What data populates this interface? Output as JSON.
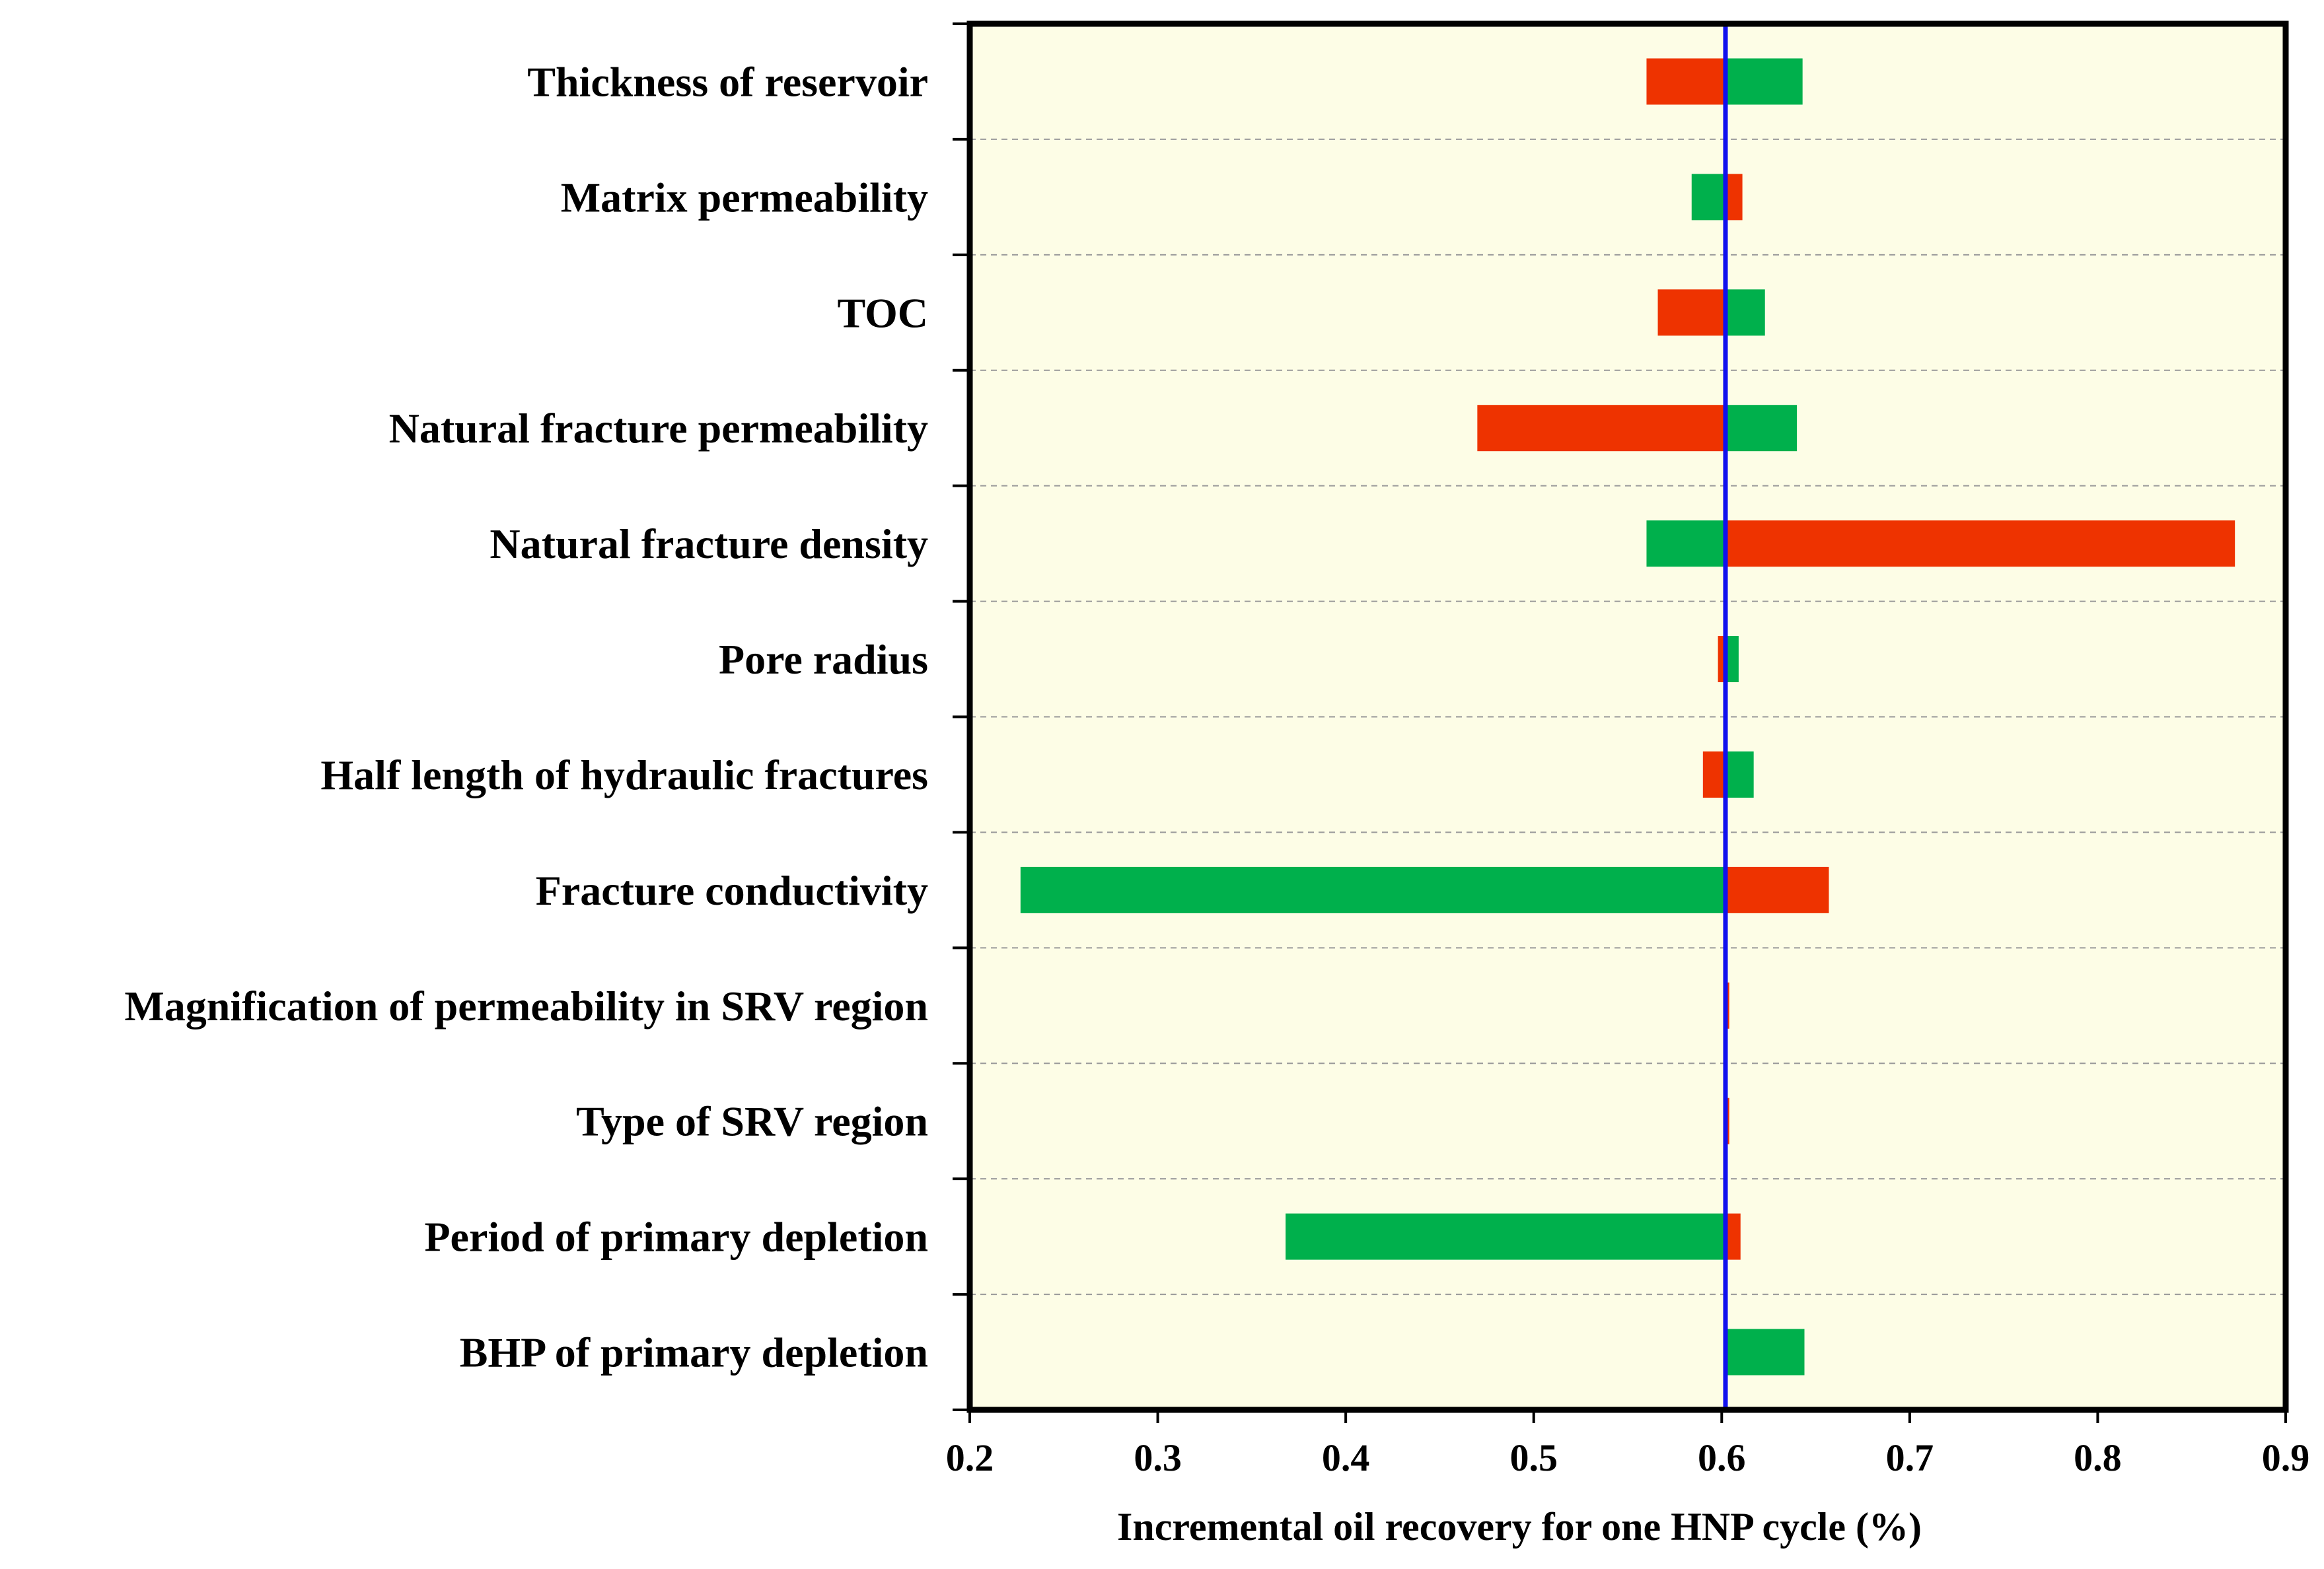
{
  "chart_data": {
    "type": "bar",
    "orientation": "horizontal",
    "title": "",
    "xlabel": "Incremental oil recovery for one HNP cycle (%)",
    "ylabel": "",
    "xlim": [
      0.2,
      0.9
    ],
    "xticks": [
      "0.2",
      "0.3",
      "0.4",
      "0.5",
      "0.6",
      "0.7",
      "0.8",
      "0.9"
    ],
    "base": 0.602,
    "grid": "horizontal dashed separators",
    "legend": "none",
    "colors": {
      "background": "#fdfde6",
      "low": "#ee3300",
      "high": "#00b04c",
      "baseline": "#1010ee",
      "frame": "#000000",
      "grid": "#9a9a9a"
    },
    "categories": [
      "Thickness of reservoir",
      "Matrix permeability",
      "TOC",
      "Natural fracture permeability",
      "Natural fracture density",
      "Pore radius",
      "Half length of hydraulic fractures",
      "Fracture conductivity",
      "Magnification of permeability in SRV region",
      "Type of SRV region",
      "Period of primary depletion",
      "BHP of primary depletion"
    ],
    "series": [
      {
        "color": "red",
        "values": [
          0.56,
          0.611,
          0.566,
          0.47,
          0.873,
          0.598,
          0.59,
          0.657,
          0.604,
          0.604,
          0.61,
          0.602
        ]
      },
      {
        "color": "green",
        "values": [
          0.643,
          0.584,
          0.623,
          0.64,
          0.56,
          0.609,
          0.617,
          0.227,
          0.602,
          0.602,
          0.368,
          0.644
        ]
      }
    ]
  }
}
